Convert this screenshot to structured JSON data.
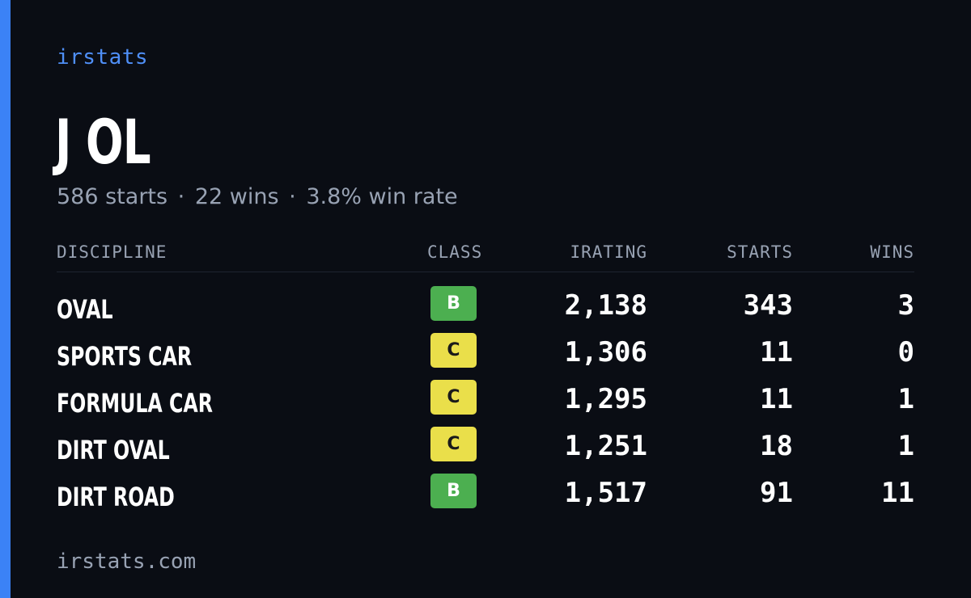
{
  "brand": "irstats",
  "driver": {
    "name": "J OL"
  },
  "summary": {
    "starts": "586 starts",
    "wins": "22 wins",
    "win_rate": "3.8% win rate",
    "separator": "·"
  },
  "table": {
    "headers": {
      "discipline": "DISCIPLINE",
      "class": "CLASS",
      "irating": "IRATING",
      "starts": "STARTS",
      "wins": "WINS"
    },
    "rows": [
      {
        "discipline": "OVAL",
        "class": "B",
        "irating": "2,138",
        "starts": "343",
        "wins": "3"
      },
      {
        "discipline": "SPORTS CAR",
        "class": "C",
        "irating": "1,306",
        "starts": "11",
        "wins": "0"
      },
      {
        "discipline": "FORMULA CAR",
        "class": "C",
        "irating": "1,295",
        "starts": "11",
        "wins": "1"
      },
      {
        "discipline": "DIRT OVAL",
        "class": "C",
        "irating": "1,251",
        "starts": "18",
        "wins": "1"
      },
      {
        "discipline": "DIRT ROAD",
        "class": "B",
        "irating": "1,517",
        "starts": "91",
        "wins": "11"
      }
    ]
  },
  "footer": "irstats.com",
  "colors": {
    "background": "#0a0d14",
    "accent": "#3b82f6",
    "class_b": "#4caf50",
    "class_c": "#eadf4a"
  }
}
